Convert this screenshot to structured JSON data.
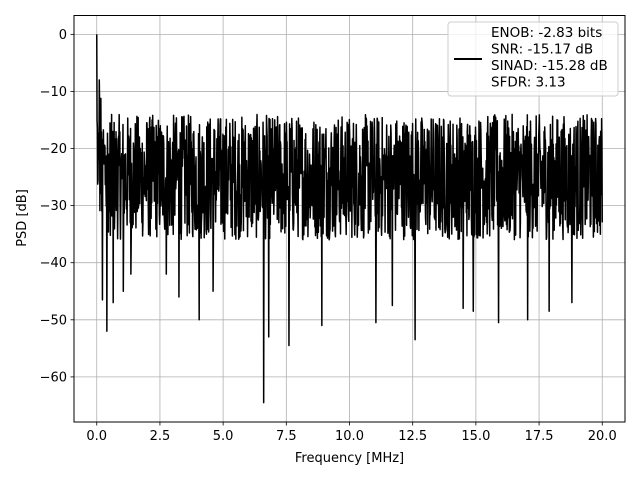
{
  "chart_data": {
    "type": "line",
    "xlabel": "Frequency [MHz]",
    "ylabel": "PSD [dB]",
    "xlim": [
      -0.9,
      20.9
    ],
    "ylim": [
      -67.9,
      3.3
    ],
    "xticks": [
      0.0,
      2.5,
      5.0,
      7.5,
      10.0,
      12.5,
      15.0,
      17.5,
      20.0
    ],
    "xtick_labels": [
      "0.0",
      "2.5",
      "5.0",
      "7.5",
      "10.0",
      "12.5",
      "15.0",
      "17.5",
      "20.0"
    ],
    "yticks": [
      0,
      -10,
      -20,
      -30,
      -40,
      -50,
      -60
    ],
    "ytick_labels": [
      "0",
      "−10",
      "−20",
      "−30",
      "−40",
      "−50",
      "−60"
    ],
    "grid": true,
    "legend_position": "top-right",
    "series_color": "#000000",
    "series": [
      {
        "name": "ENOB: -2.83 bits\nSNR: -15.17 dB\nSINAD: -15.28 dB\nSFDR: 3.13",
        "x_start": 0.0,
        "x_end": 20.0,
        "num_points": 1600,
        "noise_band_db": [
          -36,
          -14
        ],
        "peak": {
          "x": 0.0,
          "y": 0.0
        },
        "notable_points": [
          {
            "x": 0.05,
            "y": -25.5
          },
          {
            "x": 0.1,
            "y": -8.0
          },
          {
            "x": 0.22,
            "y": -46.5
          },
          {
            "x": 0.4,
            "y": -52.0
          },
          {
            "x": 0.65,
            "y": -47.0
          },
          {
            "x": 1.05,
            "y": -45.0
          },
          {
            "x": 1.35,
            "y": -42.0
          },
          {
            "x": 2.75,
            "y": -42.0
          },
          {
            "x": 3.25,
            "y": -46.0
          },
          {
            "x": 4.05,
            "y": -50.0
          },
          {
            "x": 4.6,
            "y": -45.0
          },
          {
            "x": 6.6,
            "y": -64.5
          },
          {
            "x": 6.8,
            "y": -53.0
          },
          {
            "x": 7.6,
            "y": -54.5
          },
          {
            "x": 8.9,
            "y": -51.0
          },
          {
            "x": 11.05,
            "y": -50.5
          },
          {
            "x": 11.7,
            "y": -47.5
          },
          {
            "x": 12.6,
            "y": -53.5
          },
          {
            "x": 14.5,
            "y": -48.0
          },
          {
            "x": 14.9,
            "y": -48.5
          },
          {
            "x": 15.9,
            "y": -50.5
          },
          {
            "x": 17.05,
            "y": -50.0
          },
          {
            "x": 17.9,
            "y": -48.5
          },
          {
            "x": 18.8,
            "y": -47.0
          }
        ]
      }
    ]
  }
}
